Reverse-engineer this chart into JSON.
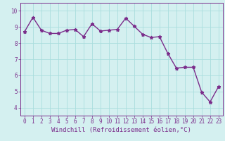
{
  "x": [
    0,
    1,
    2,
    3,
    4,
    5,
    6,
    7,
    8,
    9,
    10,
    11,
    12,
    13,
    14,
    15,
    16,
    17,
    18,
    19,
    20,
    21,
    22,
    23
  ],
  "y": [
    8.7,
    9.6,
    8.8,
    8.6,
    8.6,
    8.8,
    8.85,
    8.4,
    9.2,
    8.75,
    8.8,
    8.85,
    9.55,
    9.05,
    8.55,
    8.35,
    8.4,
    7.35,
    6.45,
    6.5,
    6.5,
    4.95,
    4.35,
    5.3
  ],
  "line_color": "#7b2d8b",
  "marker": "*",
  "marker_size": 3.5,
  "bg_color": "#d4f0f0",
  "grid_color": "#aadddd",
  "xlabel": "Windchill (Refroidissement éolien,°C)",
  "xlabel_color": "#7b2d8b",
  "ylim": [
    3.5,
    10.5
  ],
  "xlim": [
    -0.5,
    23.5
  ],
  "yticks": [
    4,
    5,
    6,
    7,
    8,
    9,
    10
  ],
  "xticks": [
    0,
    1,
    2,
    3,
    4,
    5,
    6,
    7,
    8,
    9,
    10,
    11,
    12,
    13,
    14,
    15,
    16,
    17,
    18,
    19,
    20,
    21,
    22,
    23
  ],
  "tick_color": "#7b2d8b",
  "tick_fontsize": 5.5,
  "xlabel_fontsize": 6.5,
  "line_width": 1.0
}
